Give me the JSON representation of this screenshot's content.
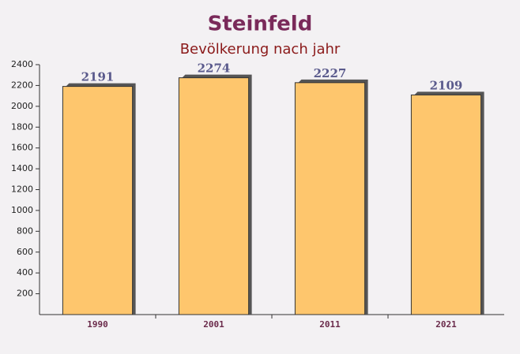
{
  "chart_data": {
    "type": "bar",
    "title": "Steinfeld",
    "subtitle": "Bevölkerung nach jahr",
    "categories": [
      "1990",
      "2001",
      "2011",
      "2021"
    ],
    "values": [
      2191,
      2274,
      2227,
      2109
    ],
    "color": "#ffc15e",
    "ylim": [
      0,
      2400
    ],
    "yticks": [
      200,
      400,
      600,
      800,
      1000,
      1200,
      1400,
      1600,
      1800,
      2000,
      2200,
      2400
    ],
    "grid": false
  }
}
